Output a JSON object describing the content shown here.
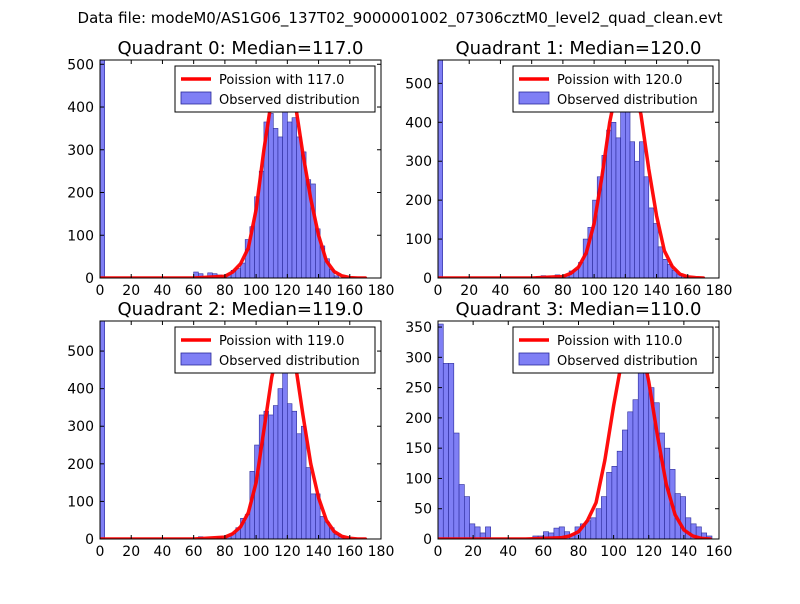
{
  "figure": {
    "suptitle": "Data file: modeM0/AS1G06_137T02_9000001002_07306cztM0_level2_quad_clean.evt"
  },
  "colors": {
    "bar_fill": "#7f7ff5",
    "bar_edge": "#2a2a9a",
    "curve": "#ff0000",
    "axes": "#000000"
  },
  "chart_data": [
    {
      "type": "bar",
      "title": "Quadrant 0: Median=117.0",
      "xlim": [
        0,
        180
      ],
      "ylim": [
        0,
        510
      ],
      "xticks": [
        0,
        20,
        40,
        60,
        80,
        100,
        120,
        140,
        160,
        180
      ],
      "yticks": [
        0,
        100,
        200,
        300,
        400,
        500
      ],
      "bin_width": 3,
      "legend": {
        "position": "top-right",
        "entries": [
          "Poission with 117.0",
          "Observed distribution"
        ]
      },
      "bins": [
        {
          "x": 0,
          "h": 510
        },
        {
          "x": 60,
          "h": 14
        },
        {
          "x": 63,
          "h": 10
        },
        {
          "x": 66,
          "h": 4
        },
        {
          "x": 69,
          "h": 12
        },
        {
          "x": 72,
          "h": 10
        },
        {
          "x": 75,
          "h": 7
        },
        {
          "x": 78,
          "h": 3
        },
        {
          "x": 81,
          "h": 8
        },
        {
          "x": 84,
          "h": 18
        },
        {
          "x": 87,
          "h": 22
        },
        {
          "x": 90,
          "h": 35
        },
        {
          "x": 93,
          "h": 90
        },
        {
          "x": 96,
          "h": 120
        },
        {
          "x": 99,
          "h": 190
        },
        {
          "x": 102,
          "h": 250
        },
        {
          "x": 105,
          "h": 365
        },
        {
          "x": 108,
          "h": 385
        },
        {
          "x": 111,
          "h": 350
        },
        {
          "x": 114,
          "h": 330
        },
        {
          "x": 117,
          "h": 400
        },
        {
          "x": 120,
          "h": 365
        },
        {
          "x": 123,
          "h": 375
        },
        {
          "x": 126,
          "h": 330
        },
        {
          "x": 129,
          "h": 295
        },
        {
          "x": 132,
          "h": 230
        },
        {
          "x": 135,
          "h": 220
        },
        {
          "x": 138,
          "h": 115
        },
        {
          "x": 141,
          "h": 75
        },
        {
          "x": 144,
          "h": 45
        },
        {
          "x": 147,
          "h": 20
        },
        {
          "x": 150,
          "h": 5
        }
      ],
      "poisson_curve": {
        "x": [
          0,
          60,
          80,
          85,
          90,
          95,
          100,
          105,
          110,
          115,
          117,
          120,
          125,
          130,
          135,
          140,
          145,
          150,
          155,
          160,
          165,
          170
        ],
        "y": [
          0,
          0,
          4,
          14,
          33,
          70,
          160,
          300,
          420,
          480,
          490,
          480,
          410,
          290,
          185,
          100,
          40,
          15,
          5,
          1,
          0,
          0
        ]
      }
    },
    {
      "type": "bar",
      "title": "Quadrant 1: Median=120.0",
      "xlim": [
        0,
        180
      ],
      "ylim": [
        0,
        560
      ],
      "xticks": [
        0,
        20,
        40,
        60,
        80,
        100,
        120,
        140,
        160,
        180
      ],
      "yticks": [
        0,
        100,
        200,
        300,
        400,
        500
      ],
      "bin_width": 3,
      "legend": {
        "position": "top-right",
        "entries": [
          "Poission with 120.0",
          "Observed distribution"
        ]
      },
      "bins": [
        {
          "x": 0,
          "h": 560
        },
        {
          "x": 63,
          "h": 4
        },
        {
          "x": 66,
          "h": 6
        },
        {
          "x": 69,
          "h": 5
        },
        {
          "x": 75,
          "h": 8
        },
        {
          "x": 81,
          "h": 6
        },
        {
          "x": 84,
          "h": 18
        },
        {
          "x": 87,
          "h": 22
        },
        {
          "x": 90,
          "h": 40
        },
        {
          "x": 93,
          "h": 100
        },
        {
          "x": 96,
          "h": 130
        },
        {
          "x": 99,
          "h": 200
        },
        {
          "x": 102,
          "h": 260
        },
        {
          "x": 105,
          "h": 315
        },
        {
          "x": 108,
          "h": 380
        },
        {
          "x": 111,
          "h": 400
        },
        {
          "x": 114,
          "h": 360
        },
        {
          "x": 117,
          "h": 505
        },
        {
          "x": 120,
          "h": 525
        },
        {
          "x": 123,
          "h": 350
        },
        {
          "x": 126,
          "h": 300
        },
        {
          "x": 129,
          "h": 350
        },
        {
          "x": 132,
          "h": 260
        },
        {
          "x": 135,
          "h": 180
        },
        {
          "x": 138,
          "h": 140
        },
        {
          "x": 141,
          "h": 80
        },
        {
          "x": 144,
          "h": 48
        },
        {
          "x": 147,
          "h": 35
        },
        {
          "x": 150,
          "h": 20
        },
        {
          "x": 153,
          "h": 10
        },
        {
          "x": 156,
          "h": 5
        }
      ],
      "poisson_curve": {
        "x": [
          0,
          60,
          80,
          85,
          90,
          95,
          100,
          105,
          110,
          115,
          120,
          125,
          130,
          135,
          140,
          145,
          150,
          155,
          160,
          165,
          170
        ],
        "y": [
          0,
          0,
          4,
          12,
          28,
          65,
          140,
          260,
          400,
          500,
          535,
          500,
          420,
          280,
          160,
          70,
          30,
          10,
          3,
          1,
          0
        ]
      }
    },
    {
      "type": "bar",
      "title": "Quadrant 2: Median=119.0",
      "xlim": [
        0,
        180
      ],
      "ylim": [
        0,
        580
      ],
      "xticks": [
        0,
        20,
        40,
        60,
        80,
        100,
        120,
        140,
        160,
        180
      ],
      "yticks": [
        0,
        100,
        200,
        300,
        400,
        500
      ],
      "bin_width": 3,
      "legend": {
        "position": "top-right",
        "entries": [
          "Poission with 119.0",
          "Observed distribution"
        ]
      },
      "bins": [
        {
          "x": 0,
          "h": 580
        },
        {
          "x": 63,
          "h": 6
        },
        {
          "x": 75,
          "h": 5
        },
        {
          "x": 81,
          "h": 8
        },
        {
          "x": 84,
          "h": 15
        },
        {
          "x": 87,
          "h": 30
        },
        {
          "x": 90,
          "h": 55
        },
        {
          "x": 93,
          "h": 65
        },
        {
          "x": 96,
          "h": 180
        },
        {
          "x": 99,
          "h": 250
        },
        {
          "x": 102,
          "h": 330
        },
        {
          "x": 105,
          "h": 340
        },
        {
          "x": 108,
          "h": 330
        },
        {
          "x": 111,
          "h": 355
        },
        {
          "x": 114,
          "h": 400
        },
        {
          "x": 117,
          "h": 460
        },
        {
          "x": 120,
          "h": 360
        },
        {
          "x": 123,
          "h": 340
        },
        {
          "x": 126,
          "h": 280
        },
        {
          "x": 129,
          "h": 300
        },
        {
          "x": 132,
          "h": 190
        },
        {
          "x": 135,
          "h": 120
        },
        {
          "x": 138,
          "h": 120
        },
        {
          "x": 141,
          "h": 60
        },
        {
          "x": 144,
          "h": 45
        },
        {
          "x": 147,
          "h": 30
        },
        {
          "x": 150,
          "h": 12
        },
        {
          "x": 153,
          "h": 6
        }
      ],
      "poisson_curve": {
        "x": [
          0,
          60,
          80,
          85,
          90,
          95,
          100,
          105,
          110,
          115,
          119,
          125,
          130,
          135,
          140,
          145,
          150,
          155,
          160,
          165,
          170
        ],
        "y": [
          0,
          0,
          5,
          14,
          32,
          70,
          150,
          290,
          430,
          520,
          555,
          470,
          330,
          200,
          110,
          50,
          20,
          7,
          2,
          0,
          0
        ]
      }
    },
    {
      "type": "bar",
      "title": "Quadrant 3: Median=110.0",
      "xlim": [
        0,
        160
      ],
      "ylim": [
        0,
        360
      ],
      "xticks": [
        0,
        20,
        40,
        60,
        80,
        100,
        120,
        140,
        160
      ],
      "yticks": [
        0,
        50,
        100,
        150,
        200,
        250,
        300,
        350
      ],
      "bin_width": 3,
      "legend": {
        "position": "top-right",
        "entries": [
          "Poission with 110.0",
          "Observed distribution"
        ]
      },
      "bins": [
        {
          "x": 0,
          "h": 355
        },
        {
          "x": 3,
          "h": 290
        },
        {
          "x": 6,
          "h": 290
        },
        {
          "x": 9,
          "h": 175
        },
        {
          "x": 12,
          "h": 90
        },
        {
          "x": 15,
          "h": 70
        },
        {
          "x": 18,
          "h": 25
        },
        {
          "x": 21,
          "h": 20
        },
        {
          "x": 24,
          "h": 10
        },
        {
          "x": 27,
          "h": 20
        },
        {
          "x": 54,
          "h": 5
        },
        {
          "x": 57,
          "h": 5
        },
        {
          "x": 60,
          "h": 12
        },
        {
          "x": 63,
          "h": 10
        },
        {
          "x": 66,
          "h": 18
        },
        {
          "x": 69,
          "h": 20
        },
        {
          "x": 72,
          "h": 12
        },
        {
          "x": 75,
          "h": 8
        },
        {
          "x": 78,
          "h": 20
        },
        {
          "x": 81,
          "h": 25
        },
        {
          "x": 84,
          "h": 30
        },
        {
          "x": 87,
          "h": 35
        },
        {
          "x": 90,
          "h": 50
        },
        {
          "x": 93,
          "h": 70
        },
        {
          "x": 96,
          "h": 110
        },
        {
          "x": 99,
          "h": 120
        },
        {
          "x": 102,
          "h": 145
        },
        {
          "x": 105,
          "h": 180
        },
        {
          "x": 108,
          "h": 210
        },
        {
          "x": 111,
          "h": 230
        },
        {
          "x": 114,
          "h": 290
        },
        {
          "x": 117,
          "h": 310
        },
        {
          "x": 120,
          "h": 250
        },
        {
          "x": 123,
          "h": 225
        },
        {
          "x": 126,
          "h": 175
        },
        {
          "x": 129,
          "h": 150
        },
        {
          "x": 132,
          "h": 115
        },
        {
          "x": 135,
          "h": 75
        },
        {
          "x": 138,
          "h": 70
        },
        {
          "x": 141,
          "h": 35
        },
        {
          "x": 144,
          "h": 25
        },
        {
          "x": 147,
          "h": 20
        },
        {
          "x": 150,
          "h": 10
        },
        {
          "x": 153,
          "h": 5
        }
      ],
      "poisson_curve": {
        "x": [
          0,
          50,
          70,
          75,
          80,
          85,
          90,
          95,
          100,
          105,
          110,
          115,
          120,
          125,
          130,
          135,
          140,
          145,
          150,
          155
        ],
        "y": [
          0,
          0,
          2,
          5,
          12,
          30,
          60,
          130,
          220,
          300,
          345,
          330,
          260,
          170,
          90,
          40,
          15,
          5,
          1,
          0
        ]
      }
    }
  ]
}
